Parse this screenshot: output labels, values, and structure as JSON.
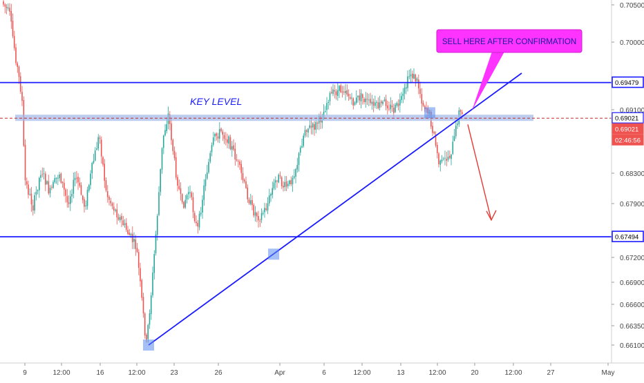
{
  "chart_data": {
    "type": "candlestick",
    "instrument_timeframe": "",
    "y_axis": {
      "ticks": [
        "0.70500",
        "0.70000",
        "0.69100",
        "0.68300",
        "0.67900",
        "0.67200",
        "0.66900",
        "0.66600",
        "0.66350",
        "0.66100"
      ],
      "ylim": [
        0.6595,
        0.7055
      ]
    },
    "x_axis": {
      "ticks": [
        "9",
        "12:00",
        "16",
        "12:00",
        "23",
        "26",
        "Apr",
        "6",
        "12:00",
        "13",
        "12:00",
        "20",
        "12:00",
        "27",
        "May"
      ]
    },
    "price_tags": [
      {
        "label": "0.69479",
        "style": "line"
      },
      {
        "label": "0.69021",
        "style": "key"
      },
      {
        "label": "0.69021",
        "style": "last"
      },
      {
        "label": "02:46:56",
        "style": "timer"
      },
      {
        "label": "0.67494",
        "style": "line"
      }
    ],
    "horizontal_levels": [
      {
        "price": 0.69479,
        "label": "0.69479"
      },
      {
        "price": 0.67494,
        "label": "0.67494"
      }
    ],
    "key_level": {
      "price": 0.69021,
      "text": "KEY   LEVEL"
    },
    "annotation": {
      "text": "SELL  HERE  AFTER  CONFIRMATION"
    },
    "trendline": {
      "from": {
        "time": "Mar 20",
        "price": 0.661
      },
      "to": {
        "time": "Apr 22",
        "price": 0.696
      }
    },
    "marked_points": [
      {
        "time": "Mar 20",
        "price": 0.661
      },
      {
        "time": "Mar 31",
        "price": 0.6727
      },
      {
        "time": "Apr 16",
        "price": 0.6909
      }
    ],
    "projection_arrow": {
      "from_price": 0.6894,
      "to_price": 0.6771
    },
    "colors": {
      "up": "#26a69a",
      "down": "#ef5350",
      "level_line": "#1a1aff",
      "key_band": "#9fb8e8",
      "annotation_fill": "#ff33ff",
      "annotation_text": "#1a1a99",
      "arrow": "#e53935",
      "axis_text": "#444444"
    },
    "grid": false,
    "legend": "none"
  }
}
